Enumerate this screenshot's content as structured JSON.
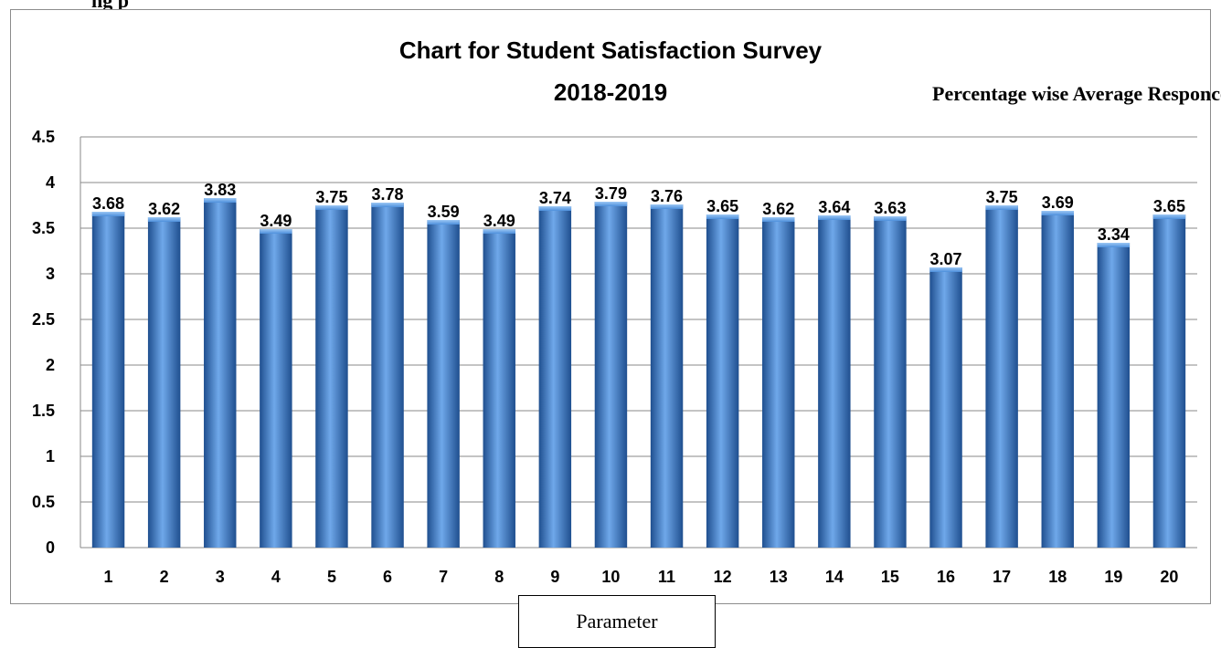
{
  "header_fragment": "ng p",
  "chart_data": {
    "type": "bar",
    "title": "Chart for Student Satisfaction Survey",
    "title_line2": "2018-2019",
    "subtitle": "Percentage wise Average Responce",
    "xlabel": "Parameter",
    "ylabel": "",
    "ylim": [
      0,
      4.5
    ],
    "yticks": [
      "0",
      "0.5",
      "1",
      "1.5",
      "2",
      "2.5",
      "3",
      "3.5",
      "4",
      "4.5"
    ],
    "categories": [
      "1",
      "2",
      "3",
      "4",
      "5",
      "6",
      "7",
      "8",
      "9",
      "10",
      "11",
      "12",
      "13",
      "14",
      "15",
      "16",
      "17",
      "18",
      "19",
      "20"
    ],
    "values": [
      3.68,
      3.62,
      3.83,
      3.49,
      3.75,
      3.78,
      3.59,
      3.49,
      3.74,
      3.79,
      3.76,
      3.65,
      3.62,
      3.64,
      3.63,
      3.07,
      3.75,
      3.69,
      3.34,
      3.65
    ],
    "data_labels": [
      "3.68",
      "3.62",
      "3.83",
      "3.49",
      "3.75",
      "3.78",
      "3.59",
      "3.49",
      "3.74",
      "3.79",
      "3.76",
      "3.65",
      "3.62",
      "3.64",
      "3.63",
      "3.07",
      "3.75",
      "3.69",
      "3.34",
      "3.65"
    ],
    "grid": true,
    "legend": "none",
    "bar_color": "#3a7fd0",
    "bar_color_dark": "#1f4f8f",
    "bar_color_light": "#6fa8ea"
  }
}
